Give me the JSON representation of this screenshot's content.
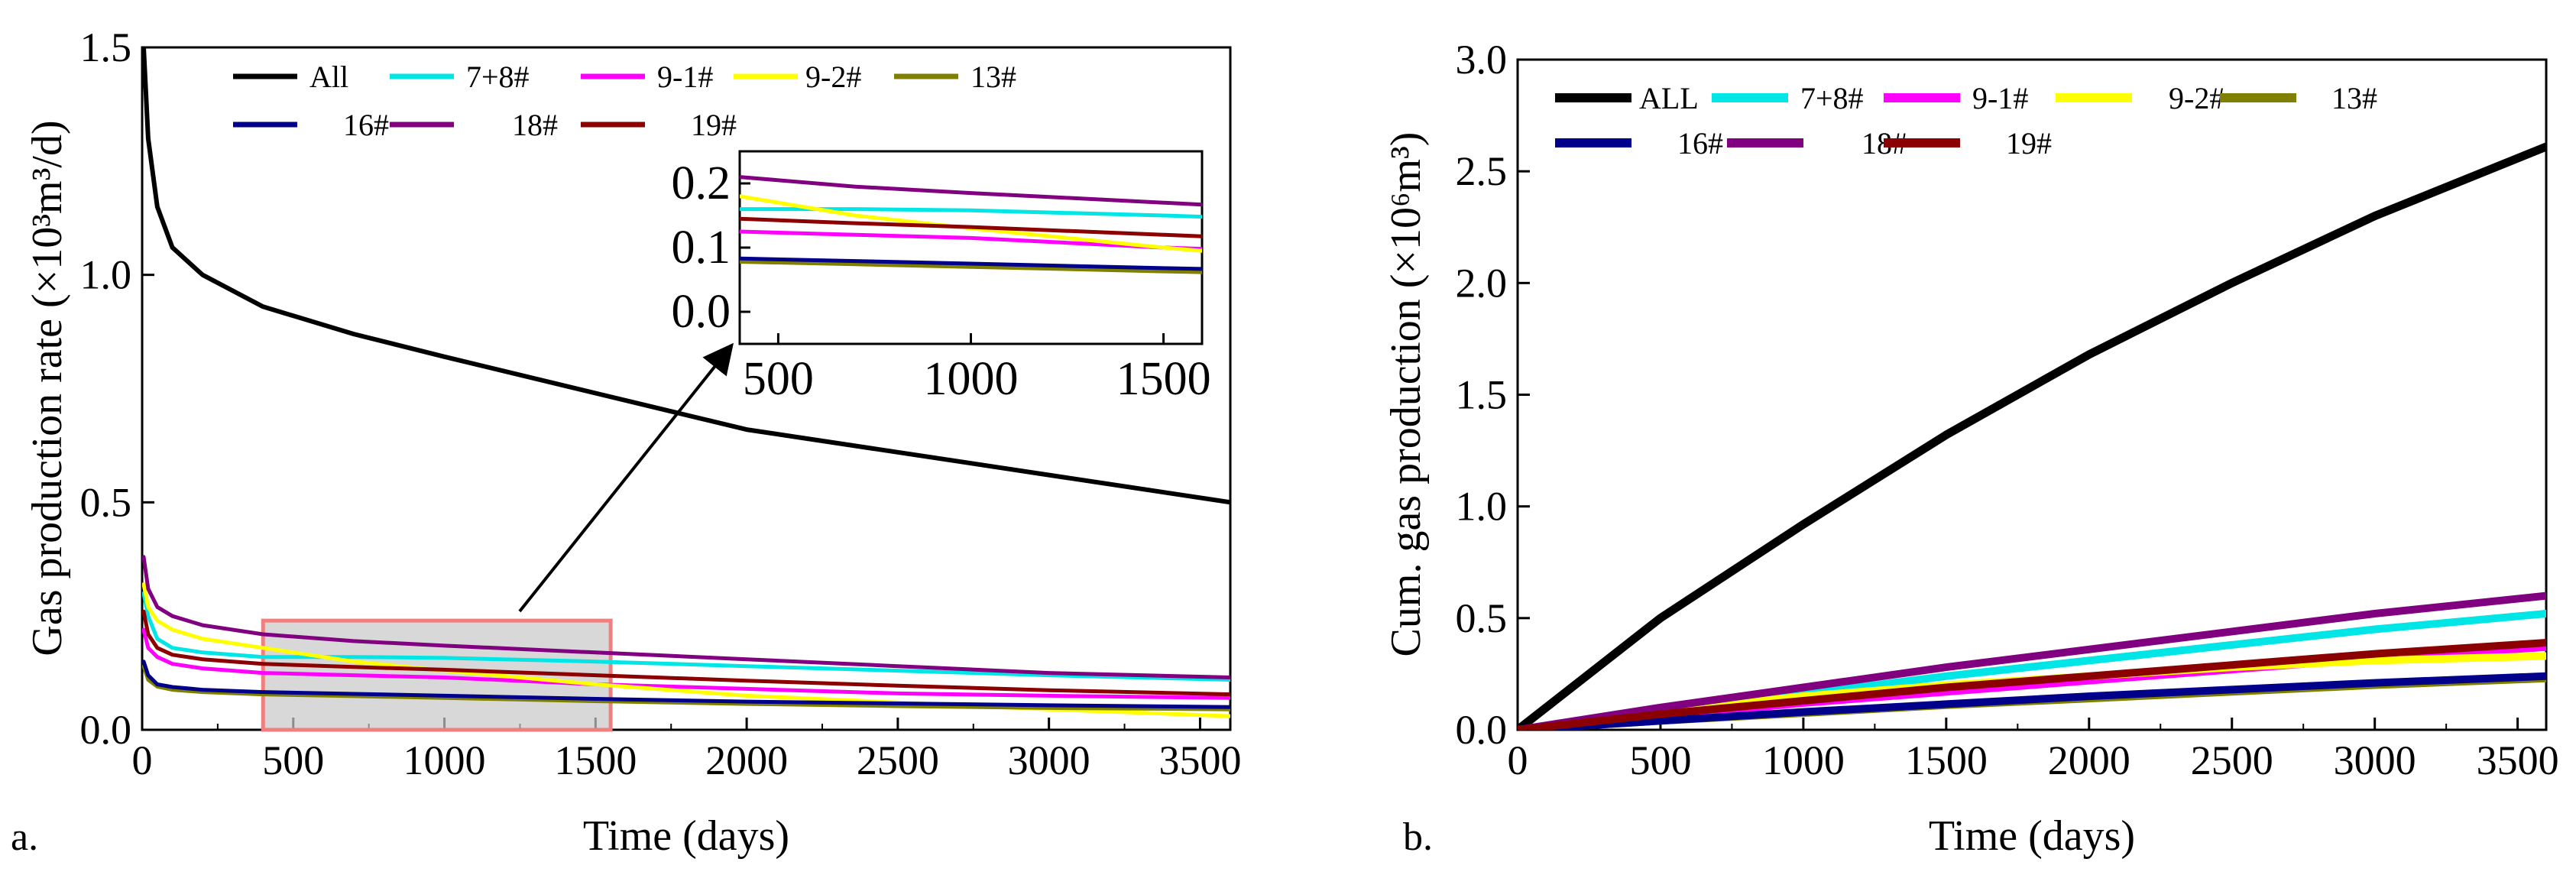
{
  "chart_data": [
    {
      "panel": "a.",
      "type": "line",
      "xlabel": "Time (days)",
      "ylabel": "Gas production rate (×10³m³/d)",
      "xlim": [
        0,
        3600
      ],
      "ylim": [
        0,
        1.5
      ],
      "xticks": [
        "0",
        "500",
        "1000",
        "1500",
        "2000",
        "2500",
        "3000",
        "3500"
      ],
      "yticks": [
        "0.0",
        "0.5",
        "1.0",
        "1.5"
      ],
      "x": [
        5,
        20,
        50,
        100,
        200,
        400,
        700,
        1000,
        1500,
        2000,
        2500,
        3000,
        3600
      ],
      "series": [
        {
          "name": "All",
          "color": "#000000",
          "values": [
            1.5,
            1.3,
            1.15,
            1.06,
            1.0,
            0.93,
            0.87,
            0.82,
            0.74,
            0.66,
            0.61,
            0.56,
            0.5
          ]
        },
        {
          "name": "7+8#",
          "color": "#00e5e5",
          "values": [
            0.3,
            0.25,
            0.2,
            0.18,
            0.17,
            0.16,
            0.16,
            0.158,
            0.15,
            0.14,
            0.13,
            0.12,
            0.11
          ]
        },
        {
          "name": "9-1#",
          "color": "#ff00ff",
          "values": [
            0.22,
            0.18,
            0.16,
            0.145,
            0.135,
            0.125,
            0.12,
            0.115,
            0.1,
            0.09,
            0.08,
            0.075,
            0.07
          ]
        },
        {
          "name": "9-2#",
          "color": "#ffff00",
          "values": [
            0.32,
            0.27,
            0.24,
            0.22,
            0.2,
            0.18,
            0.15,
            0.13,
            0.1,
            0.075,
            0.06,
            0.045,
            0.03
          ]
        },
        {
          "name": "13#",
          "color": "#808000",
          "values": [
            0.14,
            0.11,
            0.095,
            0.088,
            0.083,
            0.078,
            0.074,
            0.07,
            0.063,
            0.057,
            0.052,
            0.048,
            0.045
          ]
        },
        {
          "name": "16#",
          "color": "#00008b",
          "values": [
            0.15,
            0.12,
            0.1,
            0.094,
            0.088,
            0.083,
            0.079,
            0.075,
            0.068,
            0.062,
            0.058,
            0.054,
            0.05
          ]
        },
        {
          "name": "18#",
          "color": "#800080",
          "values": [
            0.38,
            0.31,
            0.27,
            0.25,
            0.23,
            0.21,
            0.195,
            0.185,
            0.17,
            0.155,
            0.14,
            0.125,
            0.115
          ]
        },
        {
          "name": "19#",
          "color": "#8b0000",
          "values": [
            0.26,
            0.21,
            0.18,
            0.165,
            0.155,
            0.145,
            0.138,
            0.132,
            0.12,
            0.108,
            0.097,
            0.087,
            0.078
          ]
        }
      ],
      "inset": {
        "xlim": [
          400,
          1600
        ],
        "ylim": [
          -0.05,
          0.25
        ],
        "xticks": [
          "500",
          "1000",
          "1500"
        ],
        "yticks": [
          "0.0",
          "0.1",
          "0.2"
        ],
        "zoom_region": {
          "x": [
            400,
            1550
          ],
          "y": [
            0,
            0.24
          ]
        }
      }
    },
    {
      "panel": "b.",
      "type": "line",
      "xlabel": "Time (days)",
      "ylabel": "Cum. gas production (×10⁶m³)",
      "xlim": [
        0,
        3600
      ],
      "ylim": [
        0,
        3.0
      ],
      "xticks": [
        "0",
        "500",
        "1000",
        "1500",
        "2000",
        "2500",
        "3000",
        "3500"
      ],
      "yticks": [
        "0.0",
        "0.5",
        "1.0",
        "1.5",
        "2.0",
        "2.5",
        "3.0"
      ],
      "x": [
        0,
        500,
        1000,
        1500,
        2000,
        2500,
        3000,
        3600
      ],
      "series": [
        {
          "name": "ALL",
          "color": "#000000",
          "values": [
            0,
            0.5,
            0.92,
            1.32,
            1.68,
            2.0,
            2.3,
            2.61
          ]
        },
        {
          "name": "7+8#",
          "color": "#00e5e5",
          "values": [
            0,
            0.08,
            0.16,
            0.24,
            0.31,
            0.38,
            0.45,
            0.52
          ]
        },
        {
          "name": "9-1#",
          "color": "#ff00ff",
          "values": [
            0,
            0.06,
            0.12,
            0.17,
            0.22,
            0.27,
            0.32,
            0.37
          ]
        },
        {
          "name": "9-2#",
          "color": "#ffff00",
          "values": [
            0,
            0.08,
            0.15,
            0.2,
            0.24,
            0.28,
            0.31,
            0.33
          ]
        },
        {
          "name": "13#",
          "color": "#808000",
          "values": [
            0,
            0.04,
            0.075,
            0.11,
            0.14,
            0.17,
            0.2,
            0.23
          ]
        },
        {
          "name": "16#",
          "color": "#00008b",
          "values": [
            0,
            0.04,
            0.08,
            0.115,
            0.15,
            0.18,
            0.21,
            0.24
          ]
        },
        {
          "name": "18#",
          "color": "#800080",
          "values": [
            0,
            0.1,
            0.19,
            0.28,
            0.36,
            0.44,
            0.52,
            0.6
          ]
        },
        {
          "name": "19#",
          "color": "#8b0000",
          "values": [
            0,
            0.07,
            0.13,
            0.19,
            0.24,
            0.29,
            0.34,
            0.39
          ]
        }
      ]
    }
  ]
}
